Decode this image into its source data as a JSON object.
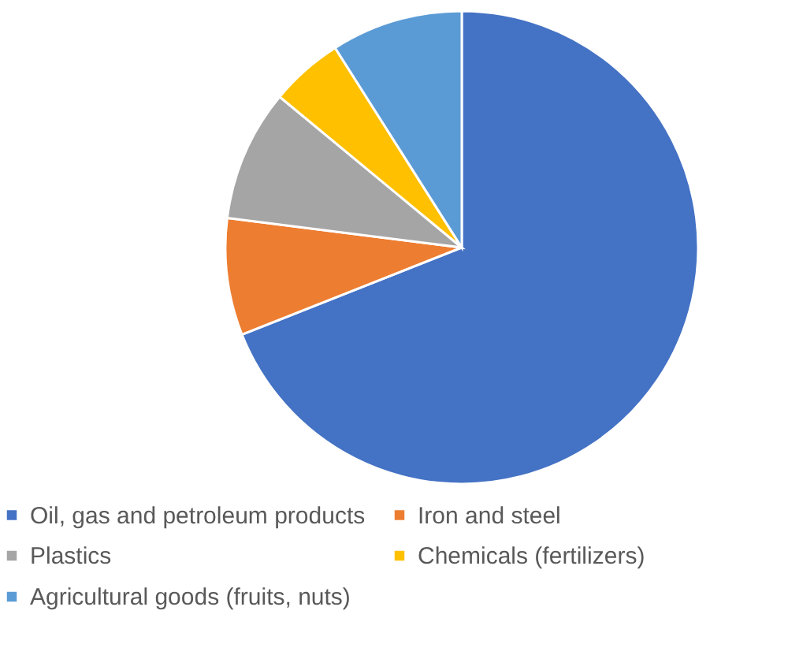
{
  "chart_data": {
    "type": "pie",
    "categories": [
      "Oil, gas and petroleum products",
      "Iron and steel",
      "Plastics",
      "Chemicals (fertilizers)",
      "Agricultural goods (fruits, nuts)"
    ],
    "values": [
      69,
      8,
      9,
      5,
      9
    ],
    "colors": [
      "#4472c4",
      "#ed7d31",
      "#a5a5a5",
      "#ffc000",
      "#5b9bd5"
    ],
    "legend": "bottom"
  }
}
